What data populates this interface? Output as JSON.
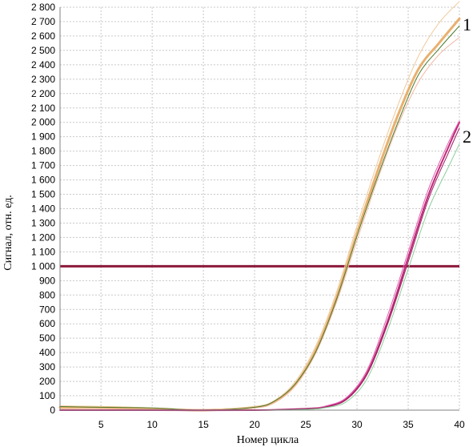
{
  "chart_data": {
    "type": "line",
    "xlabel": "Номер цикла",
    "ylabel": "Сигнал,  отн. ед.",
    "xlim": [
      1,
      40
    ],
    "ylim": [
      0,
      2800
    ],
    "x_ticks": [
      5,
      10,
      15,
      20,
      25,
      30,
      35,
      40
    ],
    "y_ticks": [
      0,
      100,
      200,
      300,
      400,
      500,
      600,
      700,
      800,
      900,
      1000,
      1100,
      1200,
      1300,
      1400,
      1500,
      1600,
      1700,
      1800,
      1900,
      2000,
      2100,
      2200,
      2300,
      2400,
      2500,
      2600,
      2700,
      2800
    ],
    "y_tick_labels": [
      "0",
      "100",
      "200",
      "300",
      "400",
      "500",
      "600",
      "700",
      "800",
      "900",
      "1 000",
      "1 100",
      "1 200",
      "1 300",
      "1 400",
      "1 500",
      "1 600",
      "1 700",
      "1 800",
      "1 900",
      "2 000",
      "2 100",
      "2 200",
      "2 300",
      "2 400",
      "2 500",
      "2 600",
      "2 700",
      "2 800"
    ],
    "grid": true,
    "threshold": 1000,
    "threshold_color": "#8b1a3a",
    "curve_labels": [
      "1",
      "2"
    ],
    "series": [
      {
        "group": "1",
        "color": "#e8b070",
        "width": 3,
        "x": [
          1,
          5,
          10,
          15,
          20,
          22,
          24,
          26,
          28,
          30,
          32,
          34,
          36,
          38,
          40
        ],
        "y": [
          20,
          20,
          10,
          0,
          20,
          60,
          180,
          420,
          780,
          1230,
          1660,
          2050,
          2370,
          2550,
          2720
        ]
      },
      {
        "group": "1",
        "color": "#f0c898",
        "width": 1,
        "x": [
          1,
          5,
          10,
          15,
          20,
          22,
          24,
          26,
          28,
          30,
          32,
          34,
          36,
          38,
          40
        ],
        "y": [
          30,
          25,
          15,
          5,
          25,
          70,
          200,
          450,
          820,
          1280,
          1720,
          2120,
          2460,
          2690,
          2840
        ]
      },
      {
        "group": "1",
        "color": "#f2b7a0",
        "width": 1,
        "x": [
          1,
          5,
          10,
          15,
          20,
          22,
          24,
          26,
          28,
          30,
          32,
          34,
          36,
          38,
          40
        ],
        "y": [
          10,
          10,
          5,
          0,
          15,
          55,
          170,
          400,
          750,
          1180,
          1600,
          1980,
          2280,
          2470,
          2590
        ]
      },
      {
        "group": "1",
        "color": "#4d7a2a",
        "width": 1,
        "x": [
          1,
          5,
          10,
          15,
          20,
          22,
          24,
          26,
          28,
          30,
          32,
          34,
          36,
          38,
          40
        ],
        "y": [
          25,
          20,
          15,
          0,
          20,
          65,
          185,
          410,
          770,
          1210,
          1620,
          2000,
          2330,
          2510,
          2670
        ]
      },
      {
        "group": "2",
        "color": "#c2287a",
        "width": 2,
        "x": [
          1,
          10,
          20,
          25,
          27,
          29,
          31,
          33,
          35,
          37,
          39,
          40
        ],
        "y": [
          0,
          0,
          0,
          10,
          25,
          80,
          260,
          620,
          1060,
          1500,
          1840,
          2000
        ]
      },
      {
        "group": "2",
        "color": "#e060b0",
        "width": 1,
        "x": [
          1,
          10,
          20,
          25,
          27,
          29,
          31,
          33,
          35,
          37,
          39,
          40
        ],
        "y": [
          0,
          0,
          0,
          10,
          30,
          90,
          280,
          660,
          1100,
          1540,
          1870,
          2010
        ]
      },
      {
        "group": "2",
        "color": "#9a2060",
        "width": 1,
        "x": [
          1,
          10,
          20,
          25,
          27,
          29,
          31,
          33,
          35,
          37,
          39,
          40
        ],
        "y": [
          0,
          0,
          0,
          10,
          22,
          75,
          250,
          600,
          1030,
          1470,
          1800,
          1960
        ]
      },
      {
        "group": "2",
        "color": "#8ccf9a",
        "width": 1,
        "x": [
          1,
          10,
          20,
          25,
          27,
          29,
          31,
          33,
          35,
          37,
          39,
          40
        ],
        "y": [
          0,
          0,
          0,
          5,
          18,
          60,
          220,
          560,
          980,
          1400,
          1700,
          1850
        ]
      }
    ]
  }
}
